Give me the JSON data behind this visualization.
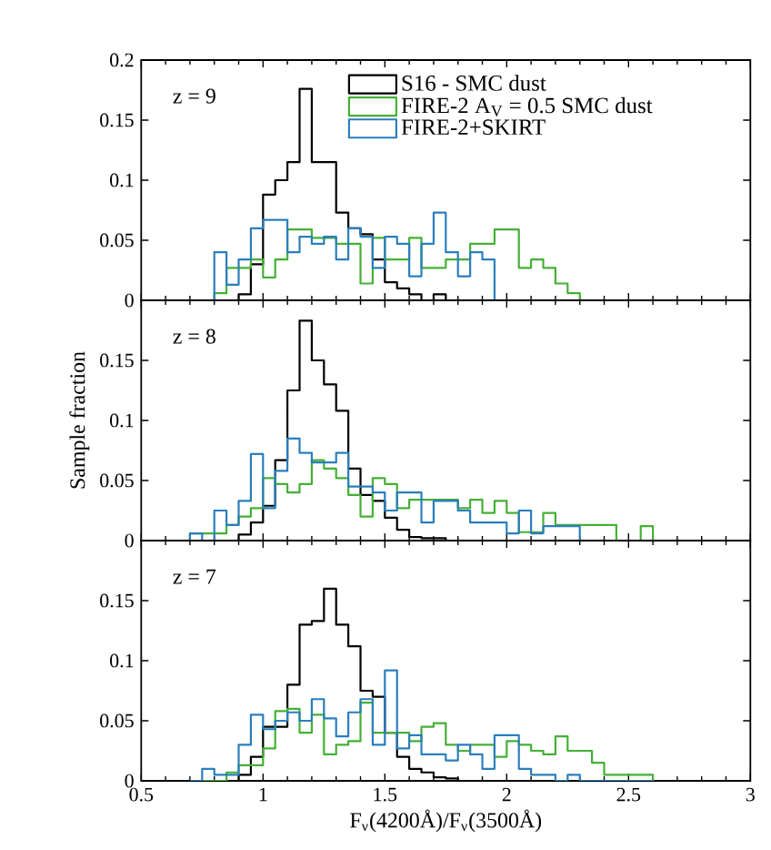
{
  "chart_data": [
    {
      "type": "histogram",
      "bins": [
        0.7,
        0.75,
        0.8,
        0.85,
        0.9,
        0.95,
        1.0,
        1.05,
        1.1,
        1.15,
        1.2,
        1.25,
        1.3,
        1.35,
        1.4,
        1.45,
        1.5,
        1.55,
        1.6,
        1.65,
        1.7,
        1.75,
        1.8,
        1.85,
        1.9,
        1.95,
        2.0,
        2.05,
        2.1,
        2.15,
        2.2,
        2.25,
        2.3,
        2.35,
        2.4,
        2.45,
        2.5,
        2.55,
        2.6
      ],
      "xlim": [
        0.5,
        3
      ],
      "xticks": [
        0.5,
        1,
        1.5,
        2,
        2.5,
        3
      ],
      "ylim": [
        0,
        0.2
      ],
      "yticks": [
        0,
        0.05,
        0.1,
        0.15,
        0.2
      ],
      "tick_labels": "y",
      "legend": "top right",
      "annotations": [
        "z = 9"
      ],
      "series": [
        {
          "name": "S16 - SMC dust",
          "color": "#000000",
          "values": [
            0,
            0,
            0,
            0,
            0.005,
            0.03,
            0.088,
            0.1,
            0.115,
            0.176,
            0.115,
            0.115,
            0.073,
            0.06,
            0.055,
            0.034,
            0.015,
            0.01,
            0.005,
            0,
            0.005,
            0,
            0,
            0,
            0,
            0,
            0,
            0,
            0,
            0,
            0,
            0,
            0,
            0,
            0,
            0,
            0,
            0
          ]
        },
        {
          "name": "FIRE-2 A$_{V}$ = 0.5 SMC dust",
          "color": "#44b035",
          "values": [
            0,
            0,
            0.006,
            0.027,
            0.027,
            0.034,
            0.019,
            0.034,
            0.059,
            0.059,
            0.052,
            0.052,
            0.047,
            0.047,
            0.014,
            0.052,
            0.034,
            0.034,
            0.052,
            0.027,
            0.027,
            0.034,
            0.034,
            0.047,
            0.047,
            0.059,
            0.059,
            0.027,
            0.034,
            0.027,
            0.014,
            0.006,
            0,
            0,
            0,
            0,
            0,
            0
          ]
        },
        {
          "name": "FIRE-2+SKIRT",
          "color": "#2a7ebd",
          "values": [
            0,
            0,
            0.04,
            0.013,
            0.034,
            0.06,
            0.067,
            0.067,
            0.04,
            0.053,
            0.047,
            0.053,
            0.034,
            0.06,
            0.053,
            0.027,
            0.053,
            0.047,
            0.02,
            0.047,
            0.073,
            0.04,
            0.02,
            0.04,
            0.034,
            0,
            0,
            0,
            0,
            0,
            0,
            0,
            0,
            0,
            0,
            0,
            0,
            0
          ]
        }
      ]
    },
    {
      "type": "histogram",
      "bins": [
        0.7,
        0.75,
        0.8,
        0.85,
        0.9,
        0.95,
        1.0,
        1.05,
        1.1,
        1.15,
        1.2,
        1.25,
        1.3,
        1.35,
        1.4,
        1.45,
        1.5,
        1.55,
        1.6,
        1.65,
        1.7,
        1.75,
        1.8,
        1.85,
        1.9,
        1.95,
        2.0,
        2.05,
        2.1,
        2.15,
        2.2,
        2.25,
        2.3,
        2.35,
        2.4,
        2.45,
        2.5,
        2.55,
        2.6
      ],
      "xlim": [
        0.5,
        3
      ],
      "xticks": [
        0.5,
        1,
        1.5,
        2,
        2.5,
        3
      ],
      "ylim": [
        0,
        0.2
      ],
      "yticks": [
        0,
        0.05,
        0.1,
        0.15
      ],
      "tick_labels": "y",
      "ylabel": "Sample fraction",
      "annotations": [
        "z = 8"
      ],
      "series": [
        {
          "color": "#000000",
          "values": [
            0,
            0,
            0,
            0,
            0.005,
            0.015,
            0.029,
            0.067,
            0.125,
            0.183,
            0.15,
            0.13,
            0.108,
            0.06,
            0.038,
            0.033,
            0.019,
            0.009,
            0.003,
            0.002,
            0.002,
            0,
            0,
            0,
            0,
            0,
            0,
            0,
            0,
            0,
            0,
            0,
            0,
            0,
            0,
            0,
            0,
            0
          ]
        },
        {
          "color": "#44b035",
          "values": [
            0.006,
            0.006,
            0.006,
            0.013,
            0.02,
            0.027,
            0.052,
            0.047,
            0.04,
            0.047,
            0.067,
            0.06,
            0.052,
            0.038,
            0.02,
            0.052,
            0.047,
            0.027,
            0.034,
            0.034,
            0.034,
            0.034,
            0.027,
            0.034,
            0.023,
            0.033,
            0.023,
            0.007,
            0.007,
            0.023,
            0.013,
            0.013,
            0.013,
            0.013,
            0.013,
            0,
            0,
            0.012
          ]
        },
        {
          "color": "#2a7ebd",
          "values": [
            0.006,
            0,
            0.025,
            0.013,
            0.033,
            0.072,
            0.027,
            0.058,
            0.085,
            0.073,
            0.065,
            0.065,
            0.073,
            0.045,
            0.045,
            0.04,
            0.025,
            0.04,
            0.04,
            0.015,
            0.033,
            0.033,
            0.025,
            0.015,
            0.015,
            0.015,
            0.006,
            0.025,
            0.006,
            0.012,
            0.012,
            0.012,
            0,
            0,
            0,
            0,
            0,
            0
          ]
        }
      ]
    },
    {
      "type": "histogram",
      "bins": [
        0.7,
        0.75,
        0.8,
        0.85,
        0.9,
        0.95,
        1.0,
        1.05,
        1.1,
        1.15,
        1.2,
        1.25,
        1.3,
        1.35,
        1.4,
        1.45,
        1.5,
        1.55,
        1.6,
        1.65,
        1.7,
        1.75,
        1.8,
        1.85,
        1.9,
        1.95,
        2.0,
        2.05,
        2.1,
        2.15,
        2.2,
        2.25,
        2.3,
        2.35,
        2.4,
        2.45,
        2.5,
        2.55,
        2.6
      ],
      "xlim": [
        0.5,
        3
      ],
      "xticks": [
        0.5,
        1,
        1.5,
        2,
        2.5,
        3
      ],
      "ylim": [
        0,
        0.2
      ],
      "yticks": [
        0,
        0.05,
        0.1,
        0.15
      ],
      "xlabel": "F$_{ν}$(4200Å)/F$_{ν}$(3500Å)",
      "annotations": [
        "z = 7"
      ],
      "series": [
        {
          "color": "#000000",
          "values": [
            0,
            0,
            0,
            0,
            0.005,
            0.02,
            0.045,
            0.045,
            0.08,
            0.13,
            0.133,
            0.16,
            0.13,
            0.112,
            0.075,
            0.07,
            0.04,
            0.02,
            0.01,
            0.007,
            0.003,
            0.002,
            0,
            0,
            0,
            0,
            0,
            0,
            0,
            0,
            0,
            0,
            0,
            0,
            0,
            0,
            0,
            0
          ]
        },
        {
          "color": "#44b035",
          "values": [
            0,
            0,
            0,
            0.007,
            0.013,
            0.013,
            0.027,
            0.058,
            0.06,
            0.04,
            0.055,
            0.022,
            0.03,
            0.033,
            0.065,
            0.04,
            0.04,
            0.04,
            0.033,
            0.045,
            0.048,
            0.03,
            0.025,
            0.03,
            0.03,
            0.02,
            0.033,
            0.03,
            0.025,
            0.022,
            0.037,
            0.025,
            0.025,
            0.015,
            0.005,
            0.005,
            0.005,
            0.005
          ]
        },
        {
          "color": "#2a7ebd",
          "values": [
            0,
            0.01,
            0.005,
            0.005,
            0.03,
            0.055,
            0.043,
            0.05,
            0.057,
            0.05,
            0.068,
            0.052,
            0.037,
            0.057,
            0.068,
            0.03,
            0.092,
            0.027,
            0.038,
            0.022,
            0.022,
            0.017,
            0.03,
            0.022,
            0.01,
            0.038,
            0.038,
            0.01,
            0.005,
            0.005,
            0,
            0.005,
            0,
            0,
            0,
            0,
            0,
            0
          ]
        }
      ]
    }
  ]
}
